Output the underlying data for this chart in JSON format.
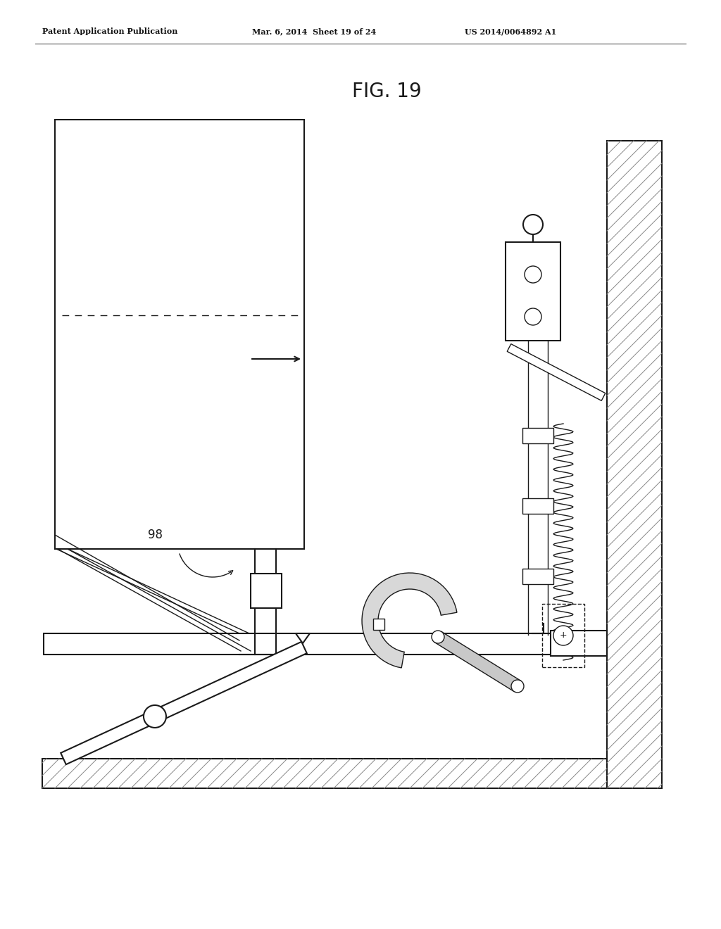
{
  "bg_color": "#ffffff",
  "lc": "#1a1a1a",
  "header_left": "Patent Application Publication",
  "header_mid": "Mar. 6, 2014  Sheet 19 of 24",
  "header_right": "US 2014/0064892 A1",
  "title": "FIG. 19",
  "label_98": "98"
}
